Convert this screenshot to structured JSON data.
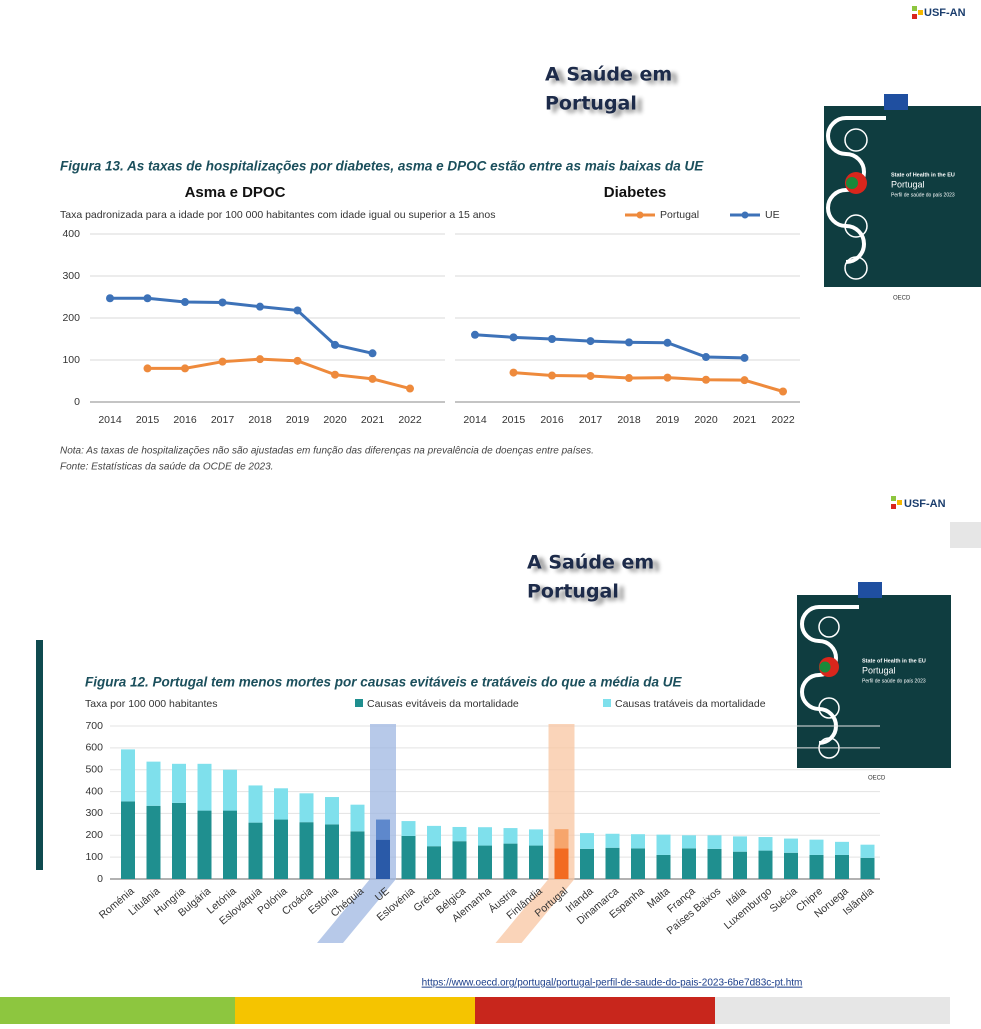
{
  "slides": [
    {
      "logo": "USF-AN",
      "heading": [
        "A Saúde em",
        "Portugal"
      ],
      "cover": {
        "kicker": "State of Health in the EU",
        "country": "Portugal",
        "subtitle": "Perfil de saúde do país 2023",
        "partner": "OECD"
      }
    },
    {
      "logo": "USF-AN",
      "heading": [
        "A Saúde em",
        "Portugal"
      ],
      "cover": {
        "kicker": "State of Health in the EU",
        "country": "Portugal",
        "subtitle": "Perfil de saúde do país 2023",
        "partner": "OECD"
      }
    }
  ],
  "figure13": {
    "title": "Figura 13. As taxas de hospitalizações por diabetes, asma e DPOC estão entre as mais baixas da UE",
    "subtitle": "Taxa padronizada para a idade por 100 000 habitantes com idade igual ou superior a 15 anos",
    "notes": [
      "Nota: As taxas de hospitalizações não são ajustadas em função das diferenças na prevalência de doenças entre países.",
      "Fonte: Estatísticas da saúde da OCDE de 2023."
    ]
  },
  "figure12": {
    "title": "Figura 12. Portugal tem menos mortes por causas evitáveis e tratáveis do que a média da UE"
  },
  "url": "https://www.oecd.org/portugal/portugal-perfil-de-saude-do-pais-2023-6be7d83c-pt.htm",
  "chart_data": [
    {
      "type": "line",
      "legend": [
        {
          "name": "Portugal",
          "color": "#ee8a3c"
        },
        {
          "name": "UE",
          "color": "#3d72b8"
        }
      ],
      "x": [
        "2014",
        "2015",
        "2016",
        "2017",
        "2018",
        "2019",
        "2020",
        "2021",
        "2022"
      ],
      "ylim": [
        0,
        400
      ],
      "yticks": [
        0,
        100,
        200,
        300,
        400
      ],
      "grid": true,
      "panels": [
        {
          "title": "Asma e DPOC",
          "series": [
            {
              "values": [
                null,
                80,
                80,
                96,
                102,
                98,
                65,
                55,
                32
              ]
            },
            {
              "values": [
                247,
                247,
                238,
                237,
                227,
                218,
                136,
                116,
                null
              ]
            }
          ]
        },
        {
          "title": "Diabetes",
          "series": [
            {
              "values": [
                null,
                70,
                63,
                62,
                57,
                58,
                53,
                52,
                25
              ]
            },
            {
              "values": [
                160,
                154,
                150,
                145,
                142,
                141,
                107,
                105,
                null
              ]
            }
          ]
        }
      ]
    },
    {
      "type": "bar",
      "stacked": true,
      "ylabel": "Taxa por 100 000 habitantes",
      "categories": [
        "Roménia",
        "Lituânia",
        "Hungria",
        "Bulgária",
        "Letónia",
        "Eslováquia",
        "Polónia",
        "Croácia",
        "Estónia",
        "Chéquia",
        "UE",
        "Eslovénia",
        "Grécia",
        "Bélgica",
        "Alemanha",
        "Áustria",
        "Finlândia",
        "Portugal",
        "Irlanda",
        "Dinamarca",
        "Espanha",
        "Malta",
        "França",
        "Países Baixos",
        "Itália",
        "Luxemburgo",
        "Suécia",
        "Chipre",
        "Noruega",
        "Islândia"
      ],
      "series": [
        {
          "name": "Causas evitáveis da mortalidade",
          "color": "#1f8f8f",
          "values": [
            355,
            335,
            348,
            313,
            313,
            258,
            272,
            260,
            250,
            218,
            180,
            197,
            150,
            173,
            153,
            162,
            153,
            140,
            138,
            143,
            140,
            110,
            140,
            138,
            125,
            130,
            120,
            110,
            110,
            97
          ]
        },
        {
          "name": "Causas tratáveis da mortalidade",
          "color": "#7fe0ec",
          "values": [
            238,
            202,
            179,
            214,
            187,
            170,
            143,
            132,
            125,
            122,
            92,
            68,
            93,
            65,
            84,
            71,
            74,
            88,
            72,
            64,
            65,
            93,
            60,
            62,
            70,
            62,
            65,
            70,
            60,
            60
          ]
        }
      ],
      "ylim": [
        0,
        700
      ],
      "yticks": [
        0,
        100,
        200,
        300,
        400,
        500,
        600,
        700
      ],
      "highlights": [
        {
          "index": 10,
          "colors": [
            "#2a5aa8",
            "#5e88cc"
          ],
          "band": "#9fb7e2"
        },
        {
          "index": 17,
          "colors": [
            "#f26b21",
            "#f6a56c"
          ],
          "band": "#f8c6a2"
        }
      ]
    }
  ]
}
